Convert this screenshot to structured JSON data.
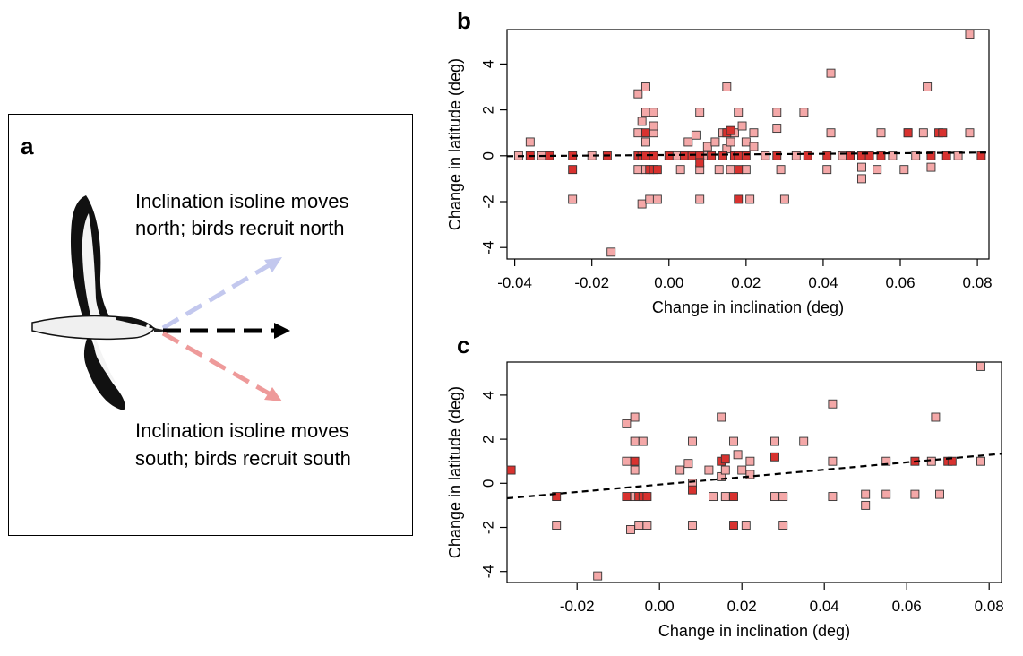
{
  "panel_a": {
    "letter": "a",
    "north_text_1": "Inclination isoline moves",
    "north_text_2": "north; birds recruit north",
    "south_text_1": "Inclination isoline moves",
    "south_text_2": "south; birds recruit south",
    "arrow_north_color": "#c3c8ee",
    "arrow_south_color": "#ee9a9a",
    "arrow_middle_color": "#000000",
    "illustration": "shearwater-bird-icon"
  },
  "chart_data": [
    {
      "type": "scatter",
      "letter": "b",
      "xlabel": "Change in inclination (deg)",
      "ylabel": "Change in latitude (deg)",
      "xlim": [
        -0.042,
        0.083
      ],
      "ylim": [
        -4.5,
        5.5
      ],
      "xticks": [
        -0.04,
        -0.02,
        0.0,
        0.02,
        0.04,
        0.06,
        0.08
      ],
      "xtick_labels": [
        "-0.04",
        "-0.02",
        "0.00",
        "0.02",
        "0.04",
        "0.06",
        "0.08"
      ],
      "yticks": [
        -4,
        -2,
        0,
        2,
        4
      ],
      "ytick_labels": [
        "-4",
        "-2",
        "0",
        "2",
        "4"
      ],
      "fit_line": [
        [
          -0.042,
          -0.02
        ],
        [
          0.083,
          0.14
        ]
      ],
      "series": [
        {
          "color": "#f4a8a8",
          "points": [
            [
              -0.036,
              0.6
            ],
            [
              -0.025,
              -1.9
            ],
            [
              -0.015,
              -4.2
            ],
            [
              -0.008,
              2.7
            ],
            [
              -0.008,
              1.0
            ],
            [
              -0.007,
              -2.1
            ],
            [
              -0.007,
              1.5
            ],
            [
              -0.006,
              3.0
            ],
            [
              -0.006,
              1.9
            ],
            [
              -0.006,
              0.6
            ],
            [
              -0.005,
              -1.9
            ],
            [
              -0.004,
              1.9
            ],
            [
              -0.004,
              1.0
            ],
            [
              -0.004,
              1.3
            ],
            [
              -0.003,
              -1.9
            ],
            [
              0.005,
              0.6
            ],
            [
              0.007,
              0.9
            ],
            [
              0.008,
              -1.9
            ],
            [
              0.008,
              1.9
            ],
            [
              0.01,
              0.4
            ],
            [
              0.012,
              0.6
            ],
            [
              0.014,
              1.0
            ],
            [
              0.015,
              3.0
            ],
            [
              0.015,
              0.3
            ],
            [
              0.016,
              0.6
            ],
            [
              0.017,
              1.0
            ],
            [
              0.018,
              1.9
            ],
            [
              0.019,
              1.3
            ],
            [
              0.02,
              0.6
            ],
            [
              0.021,
              -1.9
            ],
            [
              0.022,
              0.4
            ],
            [
              0.022,
              1.0
            ],
            [
              0.028,
              1.9
            ],
            [
              0.028,
              1.2
            ],
            [
              0.03,
              -1.9
            ],
            [
              0.035,
              1.9
            ],
            [
              0.042,
              3.6
            ],
            [
              0.042,
              1.0
            ],
            [
              0.05,
              -1.0
            ],
            [
              0.05,
              -0.5
            ],
            [
              0.055,
              1.0
            ],
            [
              0.062,
              1.0
            ],
            [
              0.066,
              1.0
            ],
            [
              0.067,
              3.0
            ],
            [
              0.068,
              -0.5
            ],
            [
              0.078,
              5.3
            ],
            [
              0.078,
              1.0
            ],
            [
              -0.008,
              -0.6
            ],
            [
              -0.006,
              -0.6
            ],
            [
              0.003,
              -0.6
            ],
            [
              0.008,
              -0.6
            ],
            [
              0.013,
              -0.6
            ],
            [
              0.016,
              -0.6
            ],
            [
              0.02,
              -0.6
            ],
            [
              0.029,
              -0.6
            ],
            [
              0.041,
              -0.6
            ],
            [
              0.054,
              -0.6
            ],
            [
              0.061,
              -0.6
            ],
            [
              -0.039,
              0.0
            ],
            [
              -0.033,
              0.0
            ],
            [
              -0.02,
              0.0
            ],
            [
              0.002,
              0.0
            ],
            [
              0.01,
              0.0
            ],
            [
              0.025,
              0.0
            ],
            [
              0.033,
              0.0
            ],
            [
              0.045,
              0.0
            ],
            [
              0.058,
              0.0
            ],
            [
              0.064,
              0.0
            ],
            [
              0.075,
              0.0
            ]
          ]
        },
        {
          "color": "#d8322f",
          "points": [
            [
              -0.036,
              0.0
            ],
            [
              -0.031,
              0.0
            ],
            [
              -0.025,
              0.0
            ],
            [
              -0.025,
              -0.6
            ],
            [
              -0.016,
              0.0
            ],
            [
              -0.008,
              0.0
            ],
            [
              -0.007,
              0.0
            ],
            [
              -0.006,
              0.0
            ],
            [
              -0.006,
              1.0
            ],
            [
              -0.005,
              -0.6
            ],
            [
              -0.004,
              0.0
            ],
            [
              -0.004,
              -0.6
            ],
            [
              -0.003,
              -0.6
            ],
            [
              0.0,
              0.0
            ],
            [
              0.004,
              0.0
            ],
            [
              0.006,
              0.0
            ],
            [
              0.008,
              0.0
            ],
            [
              0.008,
              -0.3
            ],
            [
              0.011,
              0.0
            ],
            [
              0.014,
              0.0
            ],
            [
              0.015,
              1.0
            ],
            [
              0.016,
              1.1
            ],
            [
              0.017,
              0.0
            ],
            [
              0.018,
              0.0
            ],
            [
              0.018,
              -1.9
            ],
            [
              0.018,
              -0.6
            ],
            [
              0.02,
              0.0
            ],
            [
              0.028,
              0.0
            ],
            [
              0.036,
              0.0
            ],
            [
              0.041,
              0.0
            ],
            [
              0.047,
              0.0
            ],
            [
              0.05,
              0.0
            ],
            [
              0.052,
              0.0
            ],
            [
              0.062,
              1.0
            ],
            [
              0.07,
              1.0
            ],
            [
              0.071,
              1.0
            ],
            [
              0.072,
              0.0
            ],
            [
              0.081,
              0.0
            ],
            [
              0.055,
              0.0
            ],
            [
              0.068,
              0.0
            ]
          ]
        }
      ]
    },
    {
      "type": "scatter",
      "letter": "c",
      "xlabel": "Change in inclination (deg)",
      "ylabel": "Change in latitude (deg)",
      "xlim": [
        -0.037,
        0.083
      ],
      "ylim": [
        -4.5,
        5.5
      ],
      "xticks": [
        -0.02,
        0.0,
        0.02,
        0.04,
        0.06,
        0.08
      ],
      "xtick_labels": [
        "-0.02",
        "0.00",
        "0.02",
        "0.04",
        "0.06",
        "0.08"
      ],
      "yticks": [
        -4,
        -2,
        0,
        2,
        4
      ],
      "ytick_labels": [
        "-4",
        "-2",
        "0",
        "2",
        "4"
      ],
      "fit_line": [
        [
          -0.037,
          -0.68
        ],
        [
          0.083,
          1.34
        ]
      ],
      "series": [
        {
          "color": "#f4a8a8",
          "points": [
            [
              -0.025,
              -1.9
            ],
            [
              -0.015,
              -4.2
            ],
            [
              -0.008,
              2.7
            ],
            [
              -0.008,
              1.0
            ],
            [
              -0.007,
              -2.1
            ],
            [
              -0.006,
              3.0
            ],
            [
              -0.006,
              1.9
            ],
            [
              -0.006,
              0.6
            ],
            [
              -0.005,
              -1.9
            ],
            [
              -0.004,
              1.9
            ],
            [
              -0.003,
              -1.9
            ],
            [
              -0.006,
              -0.6
            ],
            [
              -0.004,
              -0.6
            ],
            [
              0.005,
              0.6
            ],
            [
              0.007,
              0.9
            ],
            [
              0.008,
              -1.9
            ],
            [
              0.008,
              1.9
            ],
            [
              0.008,
              0.0
            ],
            [
              0.012,
              0.6
            ],
            [
              0.013,
              -0.6
            ],
            [
              0.015,
              3.0
            ],
            [
              0.015,
              0.3
            ],
            [
              0.016,
              -0.6
            ],
            [
              0.016,
              0.6
            ],
            [
              0.018,
              1.9
            ],
            [
              0.019,
              1.3
            ],
            [
              0.02,
              0.6
            ],
            [
              0.021,
              -1.9
            ],
            [
              0.022,
              0.4
            ],
            [
              0.022,
              1.0
            ],
            [
              0.028,
              1.9
            ],
            [
              0.028,
              -0.6
            ],
            [
              0.03,
              -1.9
            ],
            [
              0.03,
              -0.6
            ],
            [
              0.035,
              1.9
            ],
            [
              0.042,
              3.6
            ],
            [
              0.042,
              1.0
            ],
            [
              0.042,
              -0.6
            ],
            [
              0.05,
              -1.0
            ],
            [
              0.05,
              -0.5
            ],
            [
              0.055,
              1.0
            ],
            [
              0.055,
              -0.5
            ],
            [
              0.062,
              -0.5
            ],
            [
              0.066,
              1.0
            ],
            [
              0.067,
              3.0
            ],
            [
              0.068,
              -0.5
            ],
            [
              0.078,
              5.3
            ],
            [
              0.078,
              1.0
            ]
          ]
        },
        {
          "color": "#d8322f",
          "points": [
            [
              -0.036,
              0.6
            ],
            [
              -0.025,
              -0.6
            ],
            [
              -0.008,
              -0.6
            ],
            [
              -0.006,
              1.0
            ],
            [
              -0.005,
              -0.6
            ],
            [
              -0.004,
              -0.6
            ],
            [
              -0.003,
              -0.6
            ],
            [
              0.008,
              -0.3
            ],
            [
              0.015,
              1.0
            ],
            [
              0.016,
              1.1
            ],
            [
              0.018,
              -1.9
            ],
            [
              0.018,
              -0.6
            ],
            [
              0.028,
              1.2
            ],
            [
              0.062,
              1.0
            ],
            [
              0.07,
              1.0
            ],
            [
              0.071,
              1.0
            ]
          ]
        }
      ]
    }
  ]
}
